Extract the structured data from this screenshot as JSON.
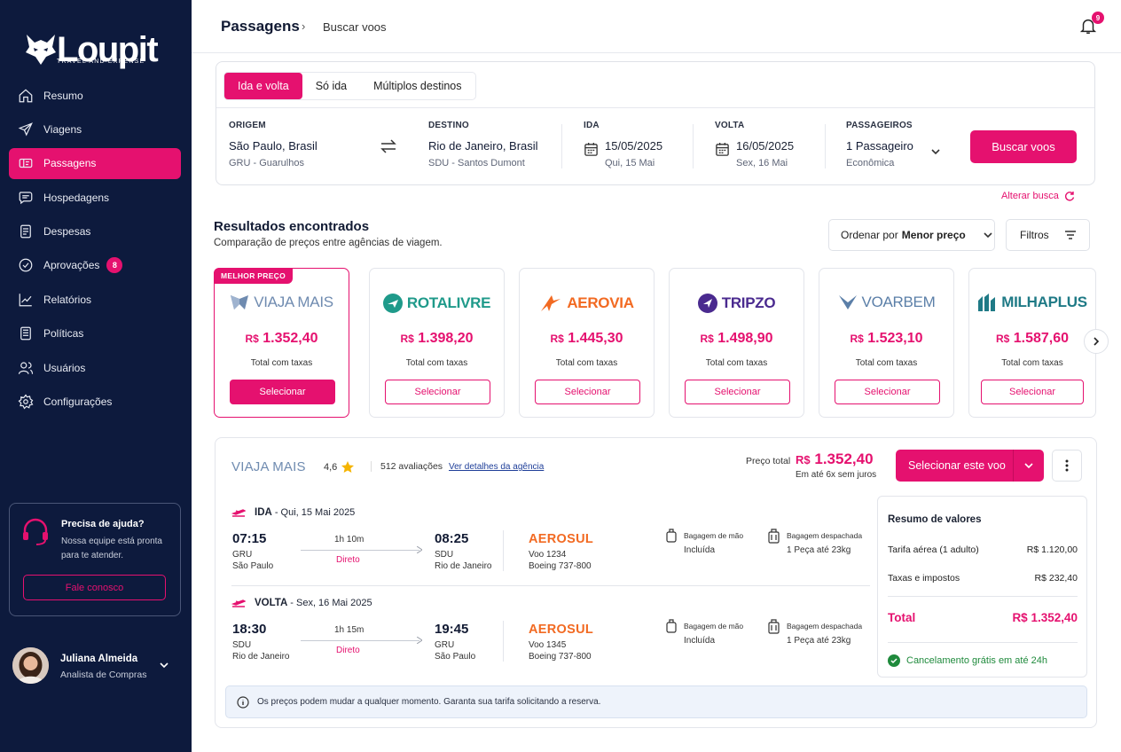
{
  "app": {
    "logo": "Loupit",
    "logo_tagline": "TRAVEL AND EXPENSE"
  },
  "sidebar": {
    "items": [
      {
        "label": "Resumo",
        "icon": "home-icon"
      },
      {
        "label": "Viagens",
        "icon": "plane-icon"
      },
      {
        "label": "Passagens",
        "icon": "ticket-icon",
        "active": true
      },
      {
        "label": "Hospedagens",
        "icon": "bed-icon"
      },
      {
        "label": "Despesas",
        "icon": "receipt-icon"
      },
      {
        "label": "Aprovações",
        "icon": "check-circle-icon",
        "badge": "8"
      },
      {
        "label": "Relatórios",
        "icon": "chart-icon"
      },
      {
        "label": "Políticas",
        "icon": "document-icon"
      },
      {
        "label": "Usuários",
        "icon": "users-icon"
      },
      {
        "label": "Configurações",
        "icon": "gear-icon"
      }
    ],
    "help": {
      "title": "Precisa de ajuda?",
      "text": "Nossa equipe está pronta para te atender.",
      "button": "Fale conosco"
    },
    "user": {
      "name": "Juliana Almeida",
      "role": "Analista de Compras"
    }
  },
  "header": {
    "breadcrumb_root": "Passagens",
    "breadcrumb_current": "Buscar voos",
    "notifications": "9"
  },
  "search": {
    "tabs": [
      "Ida e volta",
      "Só ida",
      "Múltiplos destinos"
    ],
    "active_tab": "Ida e volta",
    "origin": {
      "label": "ORIGEM",
      "value": "São Paulo, Brasil",
      "sub": "GRU - Guarulhos"
    },
    "destination": {
      "label": "DESTINO",
      "value": "Rio de Janeiro, Brasil",
      "sub": "SDU - Santos Dumont"
    },
    "depart": {
      "label": "IDA",
      "value": "15/05/2025",
      "sub": "Qui, 15 Mai"
    },
    "return": {
      "label": "VOLTA",
      "value": "16/05/2025",
      "sub": "Sex, 16 Mai"
    },
    "passengers": {
      "label": "PASSAGEIROS",
      "value": "1 Passageiro",
      "sub": "Econômica"
    },
    "button": "Buscar voos",
    "change_link": "Alterar busca"
  },
  "results": {
    "title": "Resultados encontrados",
    "subtitle": "Comparação de preços entre agências de viagem.",
    "sort_prefix": "Ordenar por",
    "sort_value": "Menor preço",
    "filters": "Filtros",
    "best_tag": "MELHOR PREÇO",
    "tax_label": "Total com taxas",
    "select_label": "Selecionar",
    "currency": "R$",
    "agencies": [
      {
        "name": "VIAJA MAIS",
        "price": "1.352,40",
        "color": "#6f8bb0"
      },
      {
        "name": "ROTALIVRE",
        "price": "1.398,20",
        "color": "#1f9a8a"
      },
      {
        "name": "AEROVIA",
        "price": "1.445,30",
        "color": "#f26a22"
      },
      {
        "name": "TRIPZO",
        "price": "1.498,90",
        "color": "#4a2a8f"
      },
      {
        "name": "VOARBEM",
        "price": "1.523,10",
        "color": "#5b7fa8"
      },
      {
        "name": "MILHAPLUS",
        "price": "1.587,60",
        "color": "#1f7a86"
      }
    ]
  },
  "detail": {
    "agency": "VIAJA MAIS",
    "rating": "4,6",
    "reviews": "512 avaliações",
    "details_link": "Ver detalhes da agência",
    "price_label": "Preço total",
    "price": "1.352,40",
    "installments": "Em até 6x sem juros",
    "select_button": "Selecionar este voo",
    "legs": [
      {
        "type": "IDA",
        "date": "- Qui, 15 Mai 2025",
        "dep_time": "07:15",
        "dep_code": "GRU",
        "dep_city": "São Paulo",
        "duration": "1h 10m",
        "stops": "Direto",
        "arr_time": "08:25",
        "arr_code": "SDU",
        "arr_city": "Rio de Janeiro",
        "airline": "AEROSUL",
        "flight": "Voo 1234",
        "aircraft": "Boeing 737-800",
        "carry_label": "Bagagem de mão",
        "carry_value": "Incluída",
        "checked_label": "Bagagem despachada",
        "checked_value": "1 Peça até 23kg"
      },
      {
        "type": "VOLTA",
        "date": "- Sex, 16 Mai 2025",
        "dep_time": "18:30",
        "dep_code": "SDU",
        "dep_city": "Rio de Janeiro",
        "duration": "1h 15m",
        "stops": "Direto",
        "arr_time": "19:45",
        "arr_code": "GRU",
        "arr_city": "São Paulo",
        "airline": "AEROSUL",
        "flight": "Voo 1345",
        "aircraft": "Boeing 737-800",
        "carry_label": "Bagagem de mão",
        "carry_value": "Incluída",
        "checked_label": "Bagagem despachada",
        "checked_value": "1 Peça até 23kg"
      }
    ],
    "summary": {
      "title": "Resumo de valores",
      "fare_label": "Tarifa aérea (1 adulto)",
      "fare": "R$ 1.120,00",
      "tax_label": "Taxas e impostos",
      "tax": "R$ 232,40",
      "total_label": "Total",
      "total": "R$ 1.352,40",
      "cancel": "Cancelamento grátis em até 24h"
    },
    "notice": "Os preços podem mudar a qualquer momento. Garanta sua tarifa solicitando a reserva."
  },
  "colors": {
    "accent": "#e5116f",
    "sidebar": "#0d1a3d",
    "success": "#1f8a3c"
  }
}
